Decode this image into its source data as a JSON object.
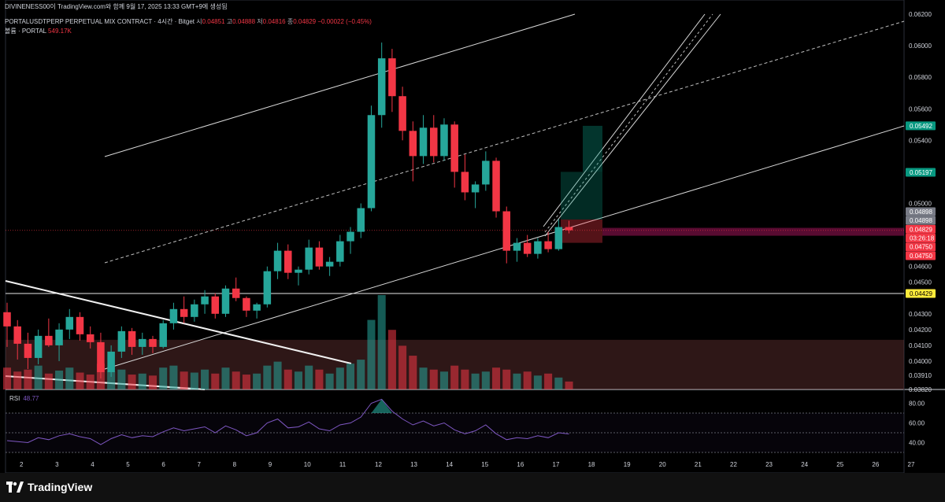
{
  "header": {
    "attribution": "DIVINENESS00이 TradingView.com와 함께 9월 17, 2025 13:33 GMT+9에 생성됨",
    "symbol_line": "PORTALUSDTPERP PERPETUAL MIX CONTRACT · 4시간 · Bitget",
    "ohlc": {
      "o_label": "시",
      "o": "0.04851",
      "h_label": "고",
      "h": "0.04888",
      "l_label": "저",
      "l": "0.04816",
      "c_label": "종",
      "c": "0.04829",
      "chg": "−0.00022 (−0.45%)"
    },
    "volume_label": "볼륨 · PORTAL",
    "volume_value": "549.17K"
  },
  "rsi": {
    "label": "RSI",
    "value": "48.77"
  },
  "footer": {
    "brand": "TradingView"
  },
  "colors": {
    "up": "#26a69a",
    "down": "#f23645",
    "rsi": "#7e57c2",
    "yellow": "#ffeb3b"
  },
  "chart_data": [
    {
      "type": "candlestick",
      "title": "PORTALUSDTPERP · 4시간",
      "yaxis_ticks": [
        "0.06200",
        "0.06000",
        "0.05800",
        "0.05600",
        "0.05400",
        "0.05000",
        "0.04600",
        "0.04500",
        "0.04300",
        "0.04200",
        "0.04100",
        "0.04000",
        "0.03910",
        "0.03820"
      ],
      "xaxis_ticks": [
        "2",
        "3",
        "4",
        "5",
        "6",
        "7",
        "8",
        "9",
        "10",
        "11",
        "12",
        "13",
        "14",
        "15",
        "16",
        "17",
        "18",
        "19",
        "20",
        "21",
        "22",
        "23",
        "24",
        "25",
        "26",
        "27"
      ],
      "price_labels": [
        {
          "value": "0.05492",
          "color": "#089981"
        },
        {
          "value": "0.05197",
          "color": "#089981"
        },
        {
          "value": "0.04898",
          "color": "#787b86"
        },
        {
          "value": "0.04898",
          "color": "#787b86"
        },
        {
          "value": "0.04829",
          "color": "#f23645"
        },
        {
          "value": "03:26:18",
          "color": "#f23645"
        },
        {
          "value": "0.04750",
          "color": "#f23645"
        },
        {
          "value": "0.04750",
          "color": "#f23645"
        },
        {
          "value": "0.04429",
          "color": "#ffeb3b"
        }
      ],
      "horizontal_line": 0.04429,
      "position_tool": {
        "entry": 0.04898,
        "target": 0.05492,
        "stop": 0.0475
      },
      "candles": [
        {
          "o": 0.0431,
          "h": 0.0437,
          "l": 0.0409,
          "c": 0.0422
        },
        {
          "o": 0.0422,
          "h": 0.0426,
          "l": 0.0401,
          "c": 0.0411
        },
        {
          "o": 0.0411,
          "h": 0.0418,
          "l": 0.0395,
          "c": 0.0402
        },
        {
          "o": 0.0402,
          "h": 0.042,
          "l": 0.0398,
          "c": 0.0416
        },
        {
          "o": 0.0416,
          "h": 0.0427,
          "l": 0.0409,
          "c": 0.041
        },
        {
          "o": 0.041,
          "h": 0.0424,
          "l": 0.04,
          "c": 0.042
        },
        {
          "o": 0.042,
          "h": 0.0433,
          "l": 0.0414,
          "c": 0.0428
        },
        {
          "o": 0.0428,
          "h": 0.0431,
          "l": 0.0413,
          "c": 0.0417
        },
        {
          "o": 0.0417,
          "h": 0.0422,
          "l": 0.0408,
          "c": 0.0412
        },
        {
          "o": 0.0412,
          "h": 0.0418,
          "l": 0.0389,
          "c": 0.0393
        },
        {
          "o": 0.0393,
          "h": 0.041,
          "l": 0.039,
          "c": 0.0406
        },
        {
          "o": 0.0406,
          "h": 0.0422,
          "l": 0.0402,
          "c": 0.0419
        },
        {
          "o": 0.0419,
          "h": 0.0421,
          "l": 0.0404,
          "c": 0.0409
        },
        {
          "o": 0.0409,
          "h": 0.0418,
          "l": 0.0404,
          "c": 0.0414
        },
        {
          "o": 0.0414,
          "h": 0.0416,
          "l": 0.0405,
          "c": 0.0409
        },
        {
          "o": 0.0409,
          "h": 0.0426,
          "l": 0.0408,
          "c": 0.0424
        },
        {
          "o": 0.0424,
          "h": 0.0437,
          "l": 0.042,
          "c": 0.0433
        },
        {
          "o": 0.0433,
          "h": 0.0441,
          "l": 0.0424,
          "c": 0.0428
        },
        {
          "o": 0.0428,
          "h": 0.0439,
          "l": 0.0425,
          "c": 0.0436
        },
        {
          "o": 0.0436,
          "h": 0.0445,
          "l": 0.043,
          "c": 0.0441
        },
        {
          "o": 0.0441,
          "h": 0.0443,
          "l": 0.0427,
          "c": 0.043
        },
        {
          "o": 0.043,
          "h": 0.0448,
          "l": 0.0428,
          "c": 0.0446
        },
        {
          "o": 0.0446,
          "h": 0.0453,
          "l": 0.0438,
          "c": 0.044
        },
        {
          "o": 0.044,
          "h": 0.0441,
          "l": 0.0428,
          "c": 0.0432
        },
        {
          "o": 0.0432,
          "h": 0.0437,
          "l": 0.0427,
          "c": 0.0436
        },
        {
          "o": 0.0436,
          "h": 0.046,
          "l": 0.0434,
          "c": 0.0457
        },
        {
          "o": 0.0457,
          "h": 0.0475,
          "l": 0.0452,
          "c": 0.047
        },
        {
          "o": 0.047,
          "h": 0.0474,
          "l": 0.0452,
          "c": 0.0456
        },
        {
          "o": 0.0456,
          "h": 0.046,
          "l": 0.0448,
          "c": 0.0458
        },
        {
          "o": 0.0458,
          "h": 0.0477,
          "l": 0.0455,
          "c": 0.0472
        },
        {
          "o": 0.0472,
          "h": 0.0476,
          "l": 0.0458,
          "c": 0.046
        },
        {
          "o": 0.046,
          "h": 0.0466,
          "l": 0.0454,
          "c": 0.0463
        },
        {
          "o": 0.0463,
          "h": 0.048,
          "l": 0.046,
          "c": 0.0476
        },
        {
          "o": 0.0476,
          "h": 0.0485,
          "l": 0.0468,
          "c": 0.0482
        },
        {
          "o": 0.0482,
          "h": 0.05,
          "l": 0.0478,
          "c": 0.0497
        },
        {
          "o": 0.0497,
          "h": 0.0562,
          "l": 0.0495,
          "c": 0.0556
        },
        {
          "o": 0.0556,
          "h": 0.0602,
          "l": 0.0548,
          "c": 0.0592
        },
        {
          "o": 0.0592,
          "h": 0.0598,
          "l": 0.0558,
          "c": 0.0568
        },
        {
          "o": 0.0568,
          "h": 0.0574,
          "l": 0.054,
          "c": 0.0546
        },
        {
          "o": 0.0546,
          "h": 0.0552,
          "l": 0.0514,
          "c": 0.053
        },
        {
          "o": 0.053,
          "h": 0.0556,
          "l": 0.0525,
          "c": 0.0548
        },
        {
          "o": 0.0548,
          "h": 0.0556,
          "l": 0.0526,
          "c": 0.053
        },
        {
          "o": 0.053,
          "h": 0.0554,
          "l": 0.0527,
          "c": 0.055
        },
        {
          "o": 0.055,
          "h": 0.0552,
          "l": 0.051,
          "c": 0.052
        },
        {
          "o": 0.052,
          "h": 0.0531,
          "l": 0.0502,
          "c": 0.0507
        },
        {
          "o": 0.0507,
          "h": 0.0514,
          "l": 0.0497,
          "c": 0.0512
        },
        {
          "o": 0.0512,
          "h": 0.0533,
          "l": 0.0508,
          "c": 0.0527
        },
        {
          "o": 0.0527,
          "h": 0.0529,
          "l": 0.0491,
          "c": 0.0495
        },
        {
          "o": 0.0495,
          "h": 0.0498,
          "l": 0.0462,
          "c": 0.047
        },
        {
          "o": 0.047,
          "h": 0.0478,
          "l": 0.0463,
          "c": 0.0475
        },
        {
          "o": 0.0475,
          "h": 0.048,
          "l": 0.0466,
          "c": 0.0468
        },
        {
          "o": 0.0468,
          "h": 0.0478,
          "l": 0.0465,
          "c": 0.0476
        },
        {
          "o": 0.0476,
          "h": 0.0482,
          "l": 0.0469,
          "c": 0.0471
        },
        {
          "o": 0.0471,
          "h": 0.049,
          "l": 0.047,
          "c": 0.0485
        },
        {
          "o": 0.0485,
          "h": 0.0489,
          "l": 0.0481,
          "c": 0.0483
        }
      ],
      "volume": [
        22,
        18,
        20,
        24,
        16,
        19,
        22,
        17,
        15,
        26,
        18,
        20,
        15,
        16,
        14,
        22,
        24,
        18,
        17,
        20,
        16,
        22,
        18,
        15,
        16,
        24,
        28,
        20,
        18,
        24,
        20,
        16,
        22,
        26,
        30,
        70,
        95,
        60,
        44,
        34,
        22,
        20,
        18,
        24,
        20,
        16,
        18,
        22,
        20,
        16,
        18,
        14,
        16,
        12,
        8
      ],
      "rsi": [
        42,
        41,
        40,
        45,
        43,
        47,
        49,
        46,
        44,
        38,
        44,
        48,
        45,
        47,
        46,
        51,
        55,
        52,
        54,
        56,
        50,
        57,
        53,
        47,
        50,
        60,
        64,
        55,
        56,
        61,
        54,
        52,
        58,
        60,
        66,
        80,
        84,
        72,
        64,
        58,
        62,
        57,
        60,
        53,
        49,
        52,
        58,
        49,
        43,
        45,
        44,
        47,
        45,
        50,
        48.77
      ],
      "rsi_ticks": [
        "80.00",
        "60.00",
        "40.00"
      ]
    }
  ]
}
